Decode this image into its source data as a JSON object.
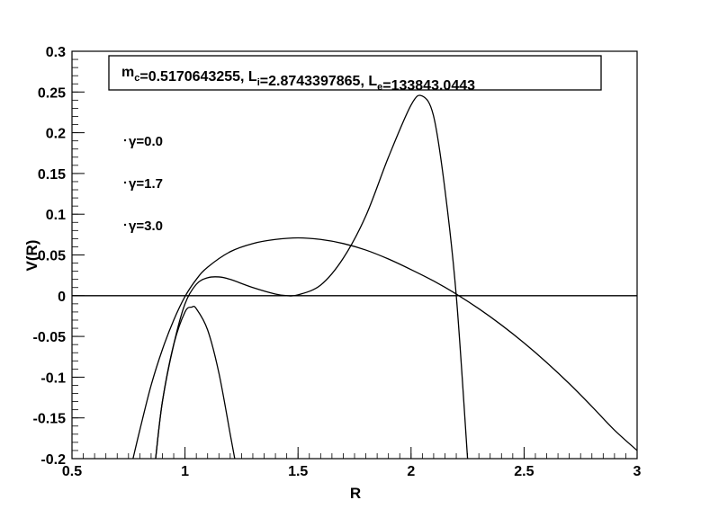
{
  "chart_data": {
    "type": "line",
    "xlabel": "R",
    "ylabel": "V(R)",
    "xlim": [
      0.5,
      3.0
    ],
    "ylim": [
      -0.2,
      0.3
    ],
    "xticks": [
      "0.5",
      "1",
      "1.5",
      "2",
      "2.5",
      "3"
    ],
    "yticks": [
      "-0.2",
      "-0.15",
      "-0.1",
      "-0.05",
      "0",
      "0.05",
      "0.1",
      "0.15",
      "0.2",
      "0.25",
      "0.3"
    ],
    "grid": false,
    "legend_position": "top-left",
    "info_box": {
      "mc_label": "m",
      "mc_sub": "c",
      "mc_value": "=0.5170643255, ",
      "li_label": "L",
      "li_sub": "i",
      "li_value": "=2.8743397865, ",
      "le_label": "L",
      "le_sub": "e",
      "le_value": "=133843.0443"
    },
    "series": [
      {
        "name": "γ=0.0",
        "x": [
          0.77,
          0.8,
          0.85,
          0.9,
          0.95,
          1.0,
          1.05,
          1.1,
          1.2,
          1.3,
          1.4,
          1.5,
          1.6,
          1.7,
          1.8,
          1.9,
          2.0,
          2.1,
          2.2,
          2.3,
          2.4,
          2.5,
          2.6,
          2.7,
          2.8,
          2.9,
          3.0
        ],
        "values": [
          -0.2,
          -0.165,
          -0.11,
          -0.066,
          -0.03,
          -0.001,
          0.02,
          0.035,
          0.054,
          0.064,
          0.069,
          0.071,
          0.069,
          0.064,
          0.056,
          0.045,
          0.032,
          0.018,
          0.002,
          -0.016,
          -0.036,
          -0.058,
          -0.082,
          -0.108,
          -0.136,
          -0.165,
          -0.19
        ]
      },
      {
        "name": "γ=1.7",
        "x": [
          0.87,
          0.9,
          0.95,
          1.0,
          1.05,
          1.1,
          1.15,
          1.2,
          1.3,
          1.4,
          1.45,
          1.5,
          1.6,
          1.7,
          1.8,
          1.9,
          2.0,
          2.05,
          2.1,
          2.15,
          2.2,
          2.25
        ],
        "values": [
          -0.2,
          -0.13,
          -0.06,
          -0.01,
          0.014,
          0.022,
          0.023,
          0.02,
          0.01,
          0.002,
          0.0,
          0.001,
          0.013,
          0.046,
          0.098,
          0.17,
          0.234,
          0.245,
          0.22,
          0.13,
          0.0,
          -0.2
        ]
      },
      {
        "name": "γ=3.0",
        "x": [
          0.87,
          0.9,
          0.95,
          1.0,
          1.03,
          1.05,
          1.1,
          1.15,
          1.2,
          1.22
        ],
        "values": [
          -0.2,
          -0.13,
          -0.06,
          -0.02,
          -0.014,
          -0.016,
          -0.042,
          -0.095,
          -0.17,
          -0.2
        ]
      }
    ]
  }
}
